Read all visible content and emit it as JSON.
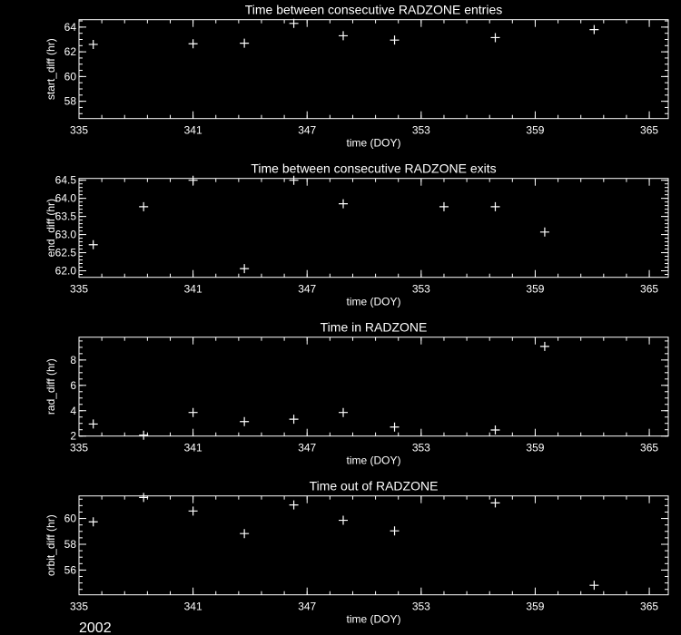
{
  "colors": {
    "background": "#000000",
    "foreground": "#ffffff"
  },
  "footer": {
    "year": "2002"
  },
  "chart_data": [
    {
      "type": "scatter",
      "title": "Time between consecutive RADZONE entries",
      "xlabel": "time (DOY)",
      "ylabel": "start_diff (hr)",
      "xlim": [
        335,
        366
      ],
      "ylim": [
        56.6,
        64.6
      ],
      "xticks": [
        "335",
        "341",
        "347",
        "353",
        "359",
        "365"
      ],
      "yticks": [
        "58",
        "60",
        "62",
        "64"
      ],
      "x_minor": 1.2,
      "y_minor": 0.5,
      "grid": false,
      "marker": "plus",
      "points": [
        [
          335.75,
          62.6
        ],
        [
          341.0,
          62.65
        ],
        [
          343.7,
          62.7
        ],
        [
          346.3,
          64.3
        ],
        [
          348.9,
          63.3
        ],
        [
          351.6,
          62.95
        ],
        [
          356.9,
          63.15
        ],
        [
          362.1,
          63.8
        ]
      ]
    },
    {
      "type": "scatter",
      "title": "Time between consecutive RADZONE exits",
      "xlabel": "time (DOY)",
      "ylabel": "end_diff (hr)",
      "xlim": [
        335,
        366
      ],
      "ylim": [
        61.82,
        64.55
      ],
      "xticks": [
        "335",
        "341",
        "347",
        "353",
        "359",
        "365"
      ],
      "yticks": [
        "62.0",
        "62.5",
        "63.0",
        "63.5",
        "64.0",
        "64.5"
      ],
      "x_minor": 1.2,
      "y_minor": 0.1,
      "grid": false,
      "marker": "plus",
      "points": [
        [
          335.75,
          62.72
        ],
        [
          338.4,
          63.77
        ],
        [
          341.0,
          64.5
        ],
        [
          343.7,
          62.06
        ],
        [
          346.3,
          64.5
        ],
        [
          348.9,
          63.85
        ],
        [
          354.2,
          63.77
        ],
        [
          356.9,
          63.77
        ],
        [
          359.5,
          63.07
        ]
      ]
    },
    {
      "type": "scatter",
      "title": "Time in RADZONE",
      "xlabel": "time (DOY)",
      "ylabel": "rad_diff (hr)",
      "xlim": [
        335,
        366
      ],
      "ylim": [
        2.0,
        9.8
      ],
      "xticks": [
        "335",
        "341",
        "347",
        "353",
        "359",
        "365"
      ],
      "yticks": [
        "2",
        "4",
        "6",
        "8"
      ],
      "x_minor": 1.2,
      "y_minor": 0.5,
      "grid": false,
      "marker": "plus",
      "points": [
        [
          335.75,
          2.95
        ],
        [
          338.4,
          2.07
        ],
        [
          341.0,
          3.86
        ],
        [
          343.7,
          3.14
        ],
        [
          346.3,
          3.33
        ],
        [
          348.9,
          3.86
        ],
        [
          351.6,
          2.71
        ],
        [
          356.9,
          2.48
        ],
        [
          359.5,
          9.07
        ]
      ]
    },
    {
      "type": "scatter",
      "title": "Time out of RADZONE",
      "xlabel": "time (DOY)",
      "ylabel": "orbit_diff (hr)",
      "xlim": [
        335,
        366
      ],
      "ylim": [
        54.08,
        61.75
      ],
      "xticks": [
        "335",
        "341",
        "347",
        "353",
        "359",
        "365"
      ],
      "yticks": [
        "56",
        "58",
        "60"
      ],
      "x_minor": 1.2,
      "y_minor": 0.5,
      "grid": false,
      "marker": "plus",
      "points": [
        [
          335.75,
          59.74
        ],
        [
          338.4,
          61.63
        ],
        [
          341.0,
          60.58
        ],
        [
          343.7,
          58.83
        ],
        [
          346.3,
          61.05
        ],
        [
          348.9,
          59.86
        ],
        [
          351.6,
          59.04
        ],
        [
          356.9,
          61.21
        ],
        [
          362.1,
          54.82
        ]
      ]
    }
  ]
}
